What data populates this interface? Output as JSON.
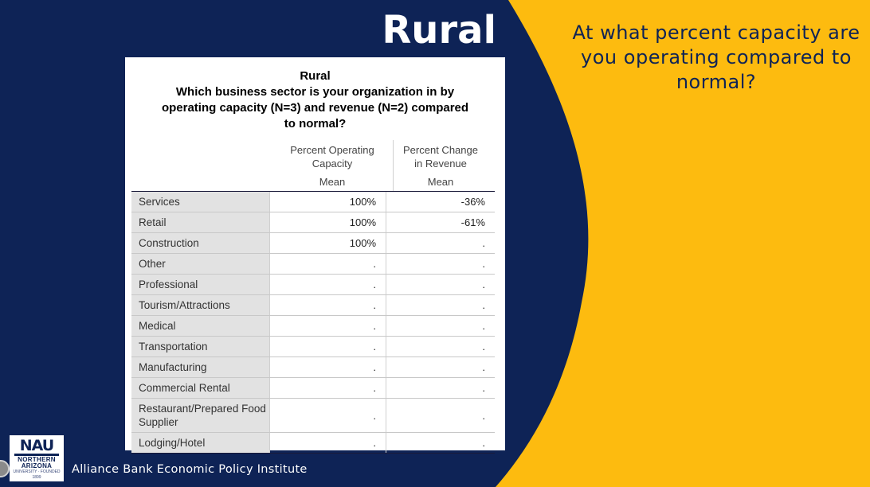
{
  "slide": {
    "title": "Rural",
    "question": "At what percent capacity are you operating compared to normal?"
  },
  "table": {
    "title_lines": [
      "Rural",
      "Which business sector is your organization in by",
      "operating capacity (N=3) and revenue (N=2) compared",
      "to normal?"
    ],
    "columns": [
      {
        "line1": "Percent Operating",
        "line2": "Capacity",
        "stat": "Mean"
      },
      {
        "line1": "Percent Change",
        "line2": "in Revenue",
        "stat": "Mean"
      }
    ],
    "rows": [
      {
        "label": "Services",
        "capacity": "100%",
        "revenue": "-36%"
      },
      {
        "label": "Retail",
        "capacity": "100%",
        "revenue": "-61%"
      },
      {
        "label": "Construction",
        "capacity": "100%",
        "revenue": "."
      },
      {
        "label": "Other",
        "capacity": ".",
        "revenue": "."
      },
      {
        "label": "Professional",
        "capacity": ".",
        "revenue": "."
      },
      {
        "label": "Tourism/Attractions",
        "capacity": ".",
        "revenue": "."
      },
      {
        "label": "Medical",
        "capacity": ".",
        "revenue": "."
      },
      {
        "label": "Transportation",
        "capacity": ".",
        "revenue": "."
      },
      {
        "label": "Manufacturing",
        "capacity": ".",
        "revenue": "."
      },
      {
        "label": "Commercial Rental",
        "capacity": ".",
        "revenue": "."
      },
      {
        "label": "Restaurant/Prepared Food Supplier",
        "capacity": ".",
        "revenue": "."
      },
      {
        "label": "Lodging/Hotel",
        "capacity": ".",
        "revenue": "."
      }
    ]
  },
  "footer": {
    "logo_lines": [
      "NAU",
      "NORTHERN",
      "ARIZONA",
      "UNIVERSITY · FOUNDED 1899"
    ],
    "institute": "Alliance Bank Economic Policy Institute"
  },
  "colors": {
    "navy": "#0e2356",
    "gold": "#fdbb0f"
  }
}
